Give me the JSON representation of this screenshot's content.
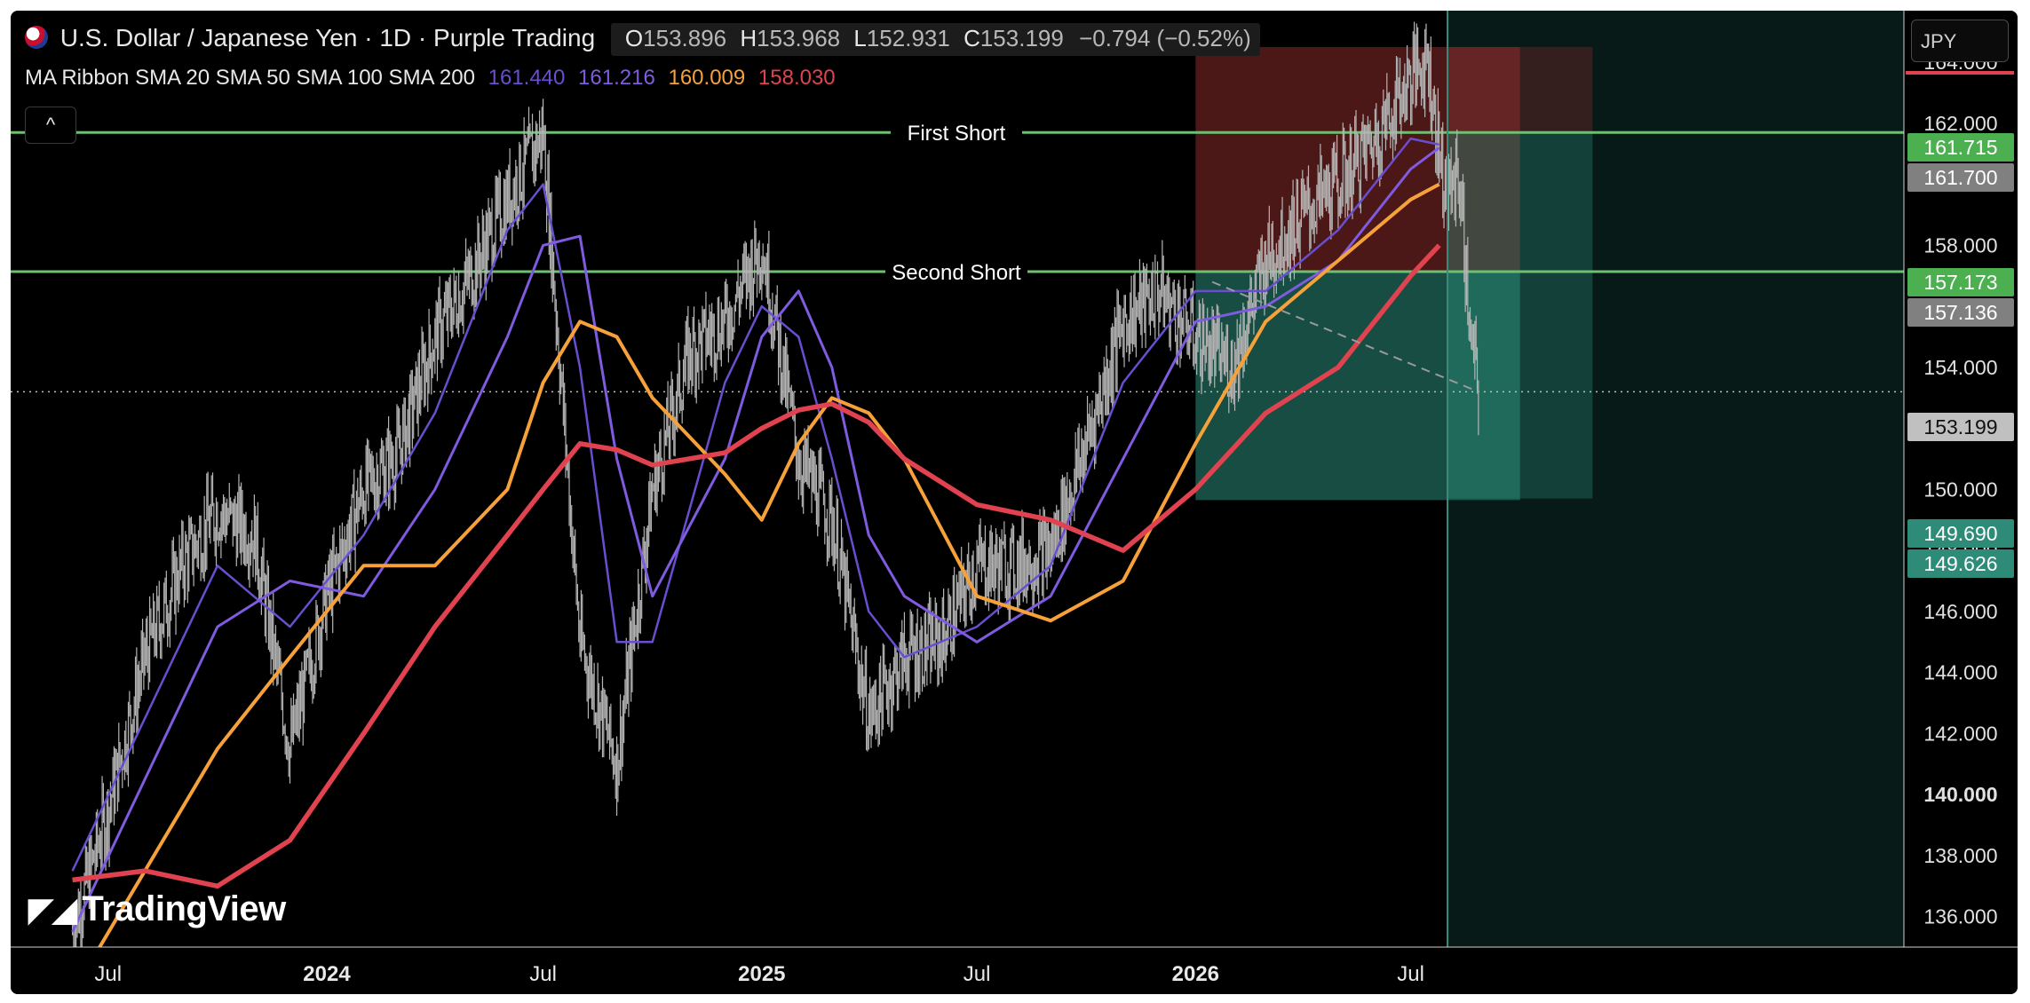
{
  "header": {
    "symbol": "U.S. Dollar / Japanese Yen",
    "interval": "1D",
    "source": "Purple Trading",
    "title_sep": "·",
    "ohlc": {
      "o_label": "O",
      "o": "153.896",
      "h_label": "H",
      "h": "153.968",
      "l_label": "L",
      "l": "152.931",
      "c_label": "C",
      "c": "153.199",
      "change": "−0.794 (−0.52%)"
    }
  },
  "indicator": {
    "name": "MA Ribbon SMA 20 SMA 50 SMA 100 SMA 200",
    "values": [
      "161.440",
      "161.216",
      "160.009",
      "158.030"
    ],
    "colors": [
      "#6a4ed0",
      "#7f5be0",
      "#f7a13a",
      "#e0434f"
    ]
  },
  "toolbar": {
    "collapse_icon": "^",
    "currency": "JPY"
  },
  "logo": {
    "text": "TradingView",
    "icon": "tradingview-logo-icon"
  },
  "colors": {
    "background": "#000000",
    "candles": "#b5b5b5",
    "sma20": "#6a4ed0",
    "sma50": "#7f5be0",
    "sma100": "#f7a13a",
    "sma200": "#e0434f",
    "horizontal_lines": "#6fbf73",
    "loss_zone": "#8b2a2a",
    "profit_zone": "#2a8c78"
  },
  "chart_data": {
    "type": "candlestick",
    "symbol": "USDJPY",
    "x_axis": {
      "tick_labels": [
        "Jul",
        "2024",
        "Jul",
        "2025",
        "Jul",
        "2026",
        "Jul"
      ],
      "bold_labels": [
        "2024",
        "2025",
        "2026"
      ]
    },
    "y_axis": {
      "ticks": [
        136,
        138,
        140,
        142,
        144,
        146,
        148,
        150,
        152,
        154,
        156,
        158,
        160,
        162,
        164
      ],
      "tick_labels": [
        "136.000",
        "138.000",
        "140.000",
        "142.000",
        "144.000",
        "146.000",
        "148.000",
        "150.000",
        "152.000",
        "154.000",
        "156.000",
        "158.000",
        "160.000",
        "162.000",
        "164.000"
      ],
      "bold_labels": [
        "140.000",
        "160.000"
      ],
      "ylim": [
        135,
        165.4
      ]
    },
    "price_labels": [
      {
        "value": 161.715,
        "text": "161.715",
        "color": "#4caf50"
      },
      {
        "value": 161.7,
        "text": "161.700",
        "color": "#808080"
      },
      {
        "value": 157.173,
        "text": "157.173",
        "color": "#4caf50"
      },
      {
        "value": 157.136,
        "text": "157.136",
        "color": "#808080"
      },
      {
        "value": 153.199,
        "text": "153.199",
        "color": "#c0c0c0"
      },
      {
        "value": 149.69,
        "text": "149.690",
        "color": "#2e8b78"
      },
      {
        "value": 149.626,
        "text": "149.626",
        "color": "#2e8b78"
      }
    ],
    "horizontal_lines": [
      {
        "value": 161.7,
        "label": "First Short"
      },
      {
        "value": 157.14,
        "label": "Second Short"
      }
    ],
    "current_price": 153.199,
    "price_path": [
      [
        "2023-06-01",
        135.5
      ],
      [
        "2023-07-01",
        139.5
      ],
      [
        "2023-08-01",
        144.5
      ],
      [
        "2023-09-01",
        147.5
      ],
      [
        "2023-10-01",
        149.3
      ],
      [
        "2023-11-01",
        148.5
      ],
      [
        "2023-12-01",
        141.5
      ],
      [
        "2024-01-01",
        146.5
      ],
      [
        "2024-02-01",
        150.0
      ],
      [
        "2024-03-01",
        151.2
      ],
      [
        "2024-04-01",
        155.0
      ],
      [
        "2024-05-01",
        157.0
      ],
      [
        "2024-06-01",
        159.5
      ],
      [
        "2024-07-01",
        161.7
      ],
      [
        "2024-08-01",
        145.0
      ],
      [
        "2024-09-01",
        141.0
      ],
      [
        "2024-10-01",
        150.0
      ],
      [
        "2024-11-01",
        154.5
      ],
      [
        "2024-12-01",
        155.5
      ],
      [
        "2025-01-01",
        158.0
      ],
      [
        "2025-02-01",
        151.0
      ],
      [
        "2025-03-01",
        149.0
      ],
      [
        "2025-04-01",
        142.5
      ],
      [
        "2025-05-01",
        144.5
      ],
      [
        "2025-06-01",
        145.0
      ],
      [
        "2025-07-01",
        147.5
      ],
      [
        "2025-08-01",
        147.5
      ],
      [
        "2025-09-01",
        148.0
      ],
      [
        "2025-10-01",
        151.5
      ],
      [
        "2025-11-01",
        155.5
      ],
      [
        "2025-12-01",
        156.5
      ],
      [
        "2026-01-01",
        155.0
      ],
      [
        "2026-02-01",
        154.0
      ],
      [
        "2026-03-01",
        157.5
      ],
      [
        "2026-04-01",
        159.0
      ],
      [
        "2026-05-01",
        160.0
      ],
      [
        "2026-06-01",
        161.5
      ],
      [
        "2026-07-01",
        163.5
      ],
      [
        "2026-07-15",
        164.2
      ],
      [
        "2026-07-25",
        161.0
      ],
      [
        "2026-08-01",
        159.5
      ],
      [
        "2026-08-10",
        160.5
      ],
      [
        "2026-08-15",
        158.0
      ],
      [
        "2026-08-20",
        155.0
      ],
      [
        "2026-08-27",
        153.2
      ]
    ],
    "series": [
      {
        "name": "SMA 20",
        "color": "#6a4ed0",
        "values": [
          [
            "2023-06-01",
            137.5
          ],
          [
            "2023-08-01",
            142.5
          ],
          [
            "2023-10-01",
            147.5
          ],
          [
            "2023-12-01",
            145.5
          ],
          [
            "2024-02-01",
            148.5
          ],
          [
            "2024-04-01",
            152.5
          ],
          [
            "2024-06-01",
            158.5
          ],
          [
            "2024-07-01",
            160.0
          ],
          [
            "2024-08-01",
            154.0
          ],
          [
            "2024-09-01",
            145.0
          ],
          [
            "2024-10-01",
            145.0
          ],
          [
            "2024-12-01",
            153.5
          ],
          [
            "2025-01-01",
            156.0
          ],
          [
            "2025-02-01",
            155.0
          ],
          [
            "2025-03-01",
            151.0
          ],
          [
            "2025-04-01",
            146.0
          ],
          [
            "2025-05-01",
            144.5
          ],
          [
            "2025-07-01",
            145.5
          ],
          [
            "2025-09-01",
            147.5
          ],
          [
            "2025-11-01",
            153.5
          ],
          [
            "2026-01-01",
            156.5
          ],
          [
            "2026-03-01",
            156.5
          ],
          [
            "2026-05-01",
            158.5
          ],
          [
            "2026-07-01",
            161.5
          ],
          [
            "2026-07-25",
            161.3
          ]
        ]
      },
      {
        "name": "SMA 50",
        "color": "#7f5be0",
        "values": [
          [
            "2023-06-01",
            135.5
          ],
          [
            "2023-08-01",
            140.5
          ],
          [
            "2023-10-01",
            145.5
          ],
          [
            "2023-12-01",
            147.0
          ],
          [
            "2024-02-01",
            146.5
          ],
          [
            "2024-04-01",
            150.0
          ],
          [
            "2024-06-01",
            155.0
          ],
          [
            "2024-07-01",
            158.0
          ],
          [
            "2024-08-01",
            158.3
          ],
          [
            "2024-09-01",
            151.0
          ],
          [
            "2024-10-01",
            146.5
          ],
          [
            "2024-12-01",
            151.0
          ],
          [
            "2025-01-01",
            155.0
          ],
          [
            "2025-02-01",
            156.5
          ],
          [
            "2025-03-01",
            154.0
          ],
          [
            "2025-04-01",
            148.5
          ],
          [
            "2025-05-01",
            146.5
          ],
          [
            "2025-07-01",
            145.0
          ],
          [
            "2025-09-01",
            146.5
          ],
          [
            "2025-11-01",
            151.0
          ],
          [
            "2026-01-01",
            155.5
          ],
          [
            "2026-03-01",
            156.0
          ],
          [
            "2026-05-01",
            157.5
          ],
          [
            "2026-07-01",
            160.5
          ],
          [
            "2026-07-25",
            161.2
          ]
        ]
      },
      {
        "name": "SMA 100",
        "color": "#f7a13a",
        "values": [
          [
            "2023-06-01",
            133.5
          ],
          [
            "2023-08-01",
            137.5
          ],
          [
            "2023-10-01",
            141.5
          ],
          [
            "2023-12-01",
            144.5
          ],
          [
            "2024-02-01",
            147.5
          ],
          [
            "2024-04-01",
            147.5
          ],
          [
            "2024-06-01",
            150.0
          ],
          [
            "2024-07-01",
            153.5
          ],
          [
            "2024-08-01",
            155.5
          ],
          [
            "2024-09-01",
            155.0
          ],
          [
            "2024-10-01",
            153.0
          ],
          [
            "2024-12-01",
            150.5
          ],
          [
            "2025-01-01",
            149.0
          ],
          [
            "2025-02-01",
            151.5
          ],
          [
            "2025-03-01",
            153.0
          ],
          [
            "2025-04-01",
            152.5
          ],
          [
            "2025-05-01",
            151.0
          ],
          [
            "2025-07-01",
            146.5
          ],
          [
            "2025-09-01",
            145.7
          ],
          [
            "2025-11-01",
            147.0
          ],
          [
            "2026-01-01",
            151.5
          ],
          [
            "2026-03-01",
            155.5
          ],
          [
            "2026-05-01",
            157.5
          ],
          [
            "2026-07-01",
            159.5
          ],
          [
            "2026-07-25",
            160.0
          ]
        ]
      },
      {
        "name": "SMA 200",
        "color": "#e0434f",
        "values": [
          [
            "2023-06-01",
            137.2
          ],
          [
            "2023-08-01",
            137.5
          ],
          [
            "2023-10-01",
            137.0
          ],
          [
            "2023-12-01",
            138.5
          ],
          [
            "2024-02-01",
            142.0
          ],
          [
            "2024-04-01",
            145.5
          ],
          [
            "2024-06-01",
            148.5
          ],
          [
            "2024-07-01",
            150.0
          ],
          [
            "2024-08-01",
            151.5
          ],
          [
            "2024-09-01",
            151.3
          ],
          [
            "2024-10-01",
            150.8
          ],
          [
            "2024-12-01",
            151.2
          ],
          [
            "2025-01-01",
            152.0
          ],
          [
            "2025-02-01",
            152.6
          ],
          [
            "2025-03-01",
            152.8
          ],
          [
            "2025-04-01",
            152.2
          ],
          [
            "2025-05-01",
            151.0
          ],
          [
            "2025-07-01",
            149.5
          ],
          [
            "2025-09-01",
            149.0
          ],
          [
            "2025-11-01",
            148.0
          ],
          [
            "2026-01-01",
            150.0
          ],
          [
            "2026-03-01",
            152.5
          ],
          [
            "2026-05-01",
            154.0
          ],
          [
            "2026-07-01",
            157.0
          ],
          [
            "2026-07-25",
            158.0
          ]
        ]
      }
    ],
    "positions": [
      {
        "type": "short",
        "start": "2026-01-01",
        "end": "2026-10-01",
        "entry": 157.14,
        "stop": 164.5,
        "target": 149.65
      },
      {
        "type": "short",
        "start": "2026-08-01",
        "end": "2026-12-01",
        "entry": 161.7,
        "stop": 164.5,
        "target": 149.7
      }
    ],
    "trend_line": {
      "from": [
        "2026-01-15",
        156.8
      ],
      "to": [
        "2026-08-27",
        153.2
      ],
      "style": "dashed"
    },
    "cursor_date": "2026-08-01"
  }
}
